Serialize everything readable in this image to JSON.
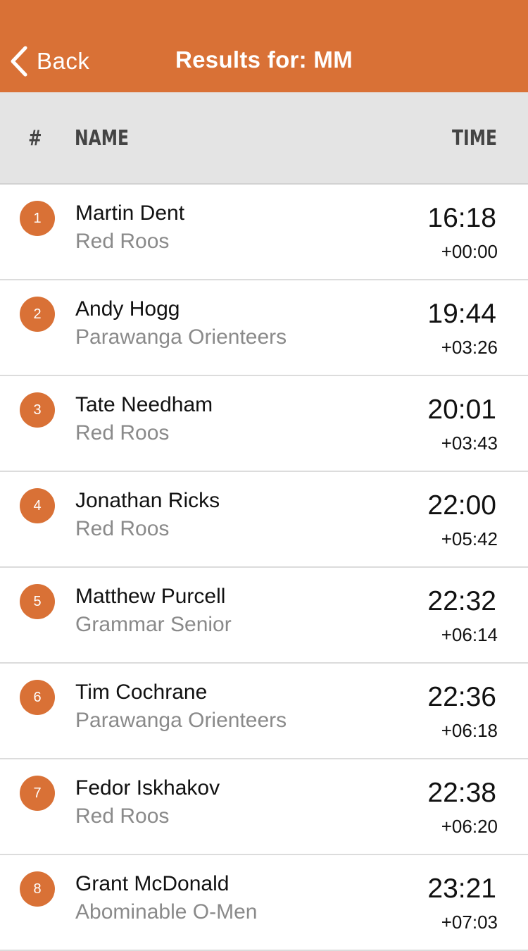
{
  "nav": {
    "back_label": "Back",
    "title": "Results for: MM",
    "color": "#d97136"
  },
  "columns": {
    "rank": "#",
    "name": "NAME",
    "time": "TIME"
  },
  "results": [
    {
      "rank": "1",
      "name": "Martin Dent",
      "club": "Red Roos",
      "time": "16:18",
      "diff": "+00:00"
    },
    {
      "rank": "2",
      "name": "Andy Hogg",
      "club": "Parawanga Orienteers",
      "time": "19:44",
      "diff": "+03:26"
    },
    {
      "rank": "3",
      "name": "Tate Needham",
      "club": "Red Roos",
      "time": "20:01",
      "diff": "+03:43"
    },
    {
      "rank": "4",
      "name": "Jonathan Ricks",
      "club": "Red Roos",
      "time": "22:00",
      "diff": "+05:42"
    },
    {
      "rank": "5",
      "name": "Matthew Purcell",
      "club": "Grammar Senior",
      "time": "22:32",
      "diff": "+06:14"
    },
    {
      "rank": "6",
      "name": "Tim Cochrane",
      "club": "Parawanga Orienteers",
      "time": "22:36",
      "diff": "+06:18"
    },
    {
      "rank": "7",
      "name": "Fedor Iskhakov",
      "club": "Red Roos",
      "time": "22:38",
      "diff": "+06:20"
    },
    {
      "rank": "8",
      "name": "Grant McDonald",
      "club": "Abominable O-Men",
      "time": "23:21",
      "diff": "+07:03"
    }
  ]
}
